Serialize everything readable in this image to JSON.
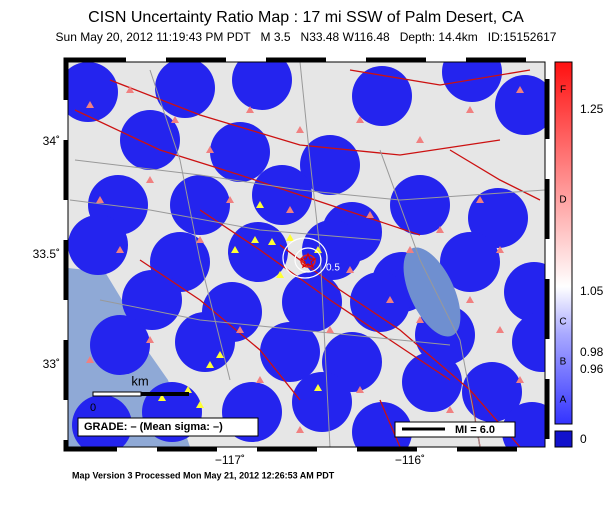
{
  "header": {
    "title": "CISN Uncertainty Ratio Map : 17 mi SSW of Palm Desert, CA",
    "subtitle": "Sun May 20, 2012 11:19:43 PM PDT   M 3.5   N33.48 W116.48   Depth: 14.4km   ID:15152617"
  },
  "map": {
    "lat_labels": [
      "34˚",
      "33.5˚",
      "33˚"
    ],
    "lon_labels": [
      "−117˚",
      "−116˚"
    ],
    "scale_unit": "km",
    "scale_zero": "0",
    "contour_label": "0.5",
    "grade_box": "GRADE: – (Mean sigma: –)",
    "mi_box": "MI = 6.0"
  },
  "colorbar": {
    "grades": [
      "F",
      "D",
      "C",
      "B",
      "A"
    ],
    "values": [
      "1.25",
      "1.05",
      "0.98",
      "0.96",
      "0"
    ]
  },
  "footer": "Map Version 3 Processed Mon May 21, 2012 12:26:53 AM PDT"
}
